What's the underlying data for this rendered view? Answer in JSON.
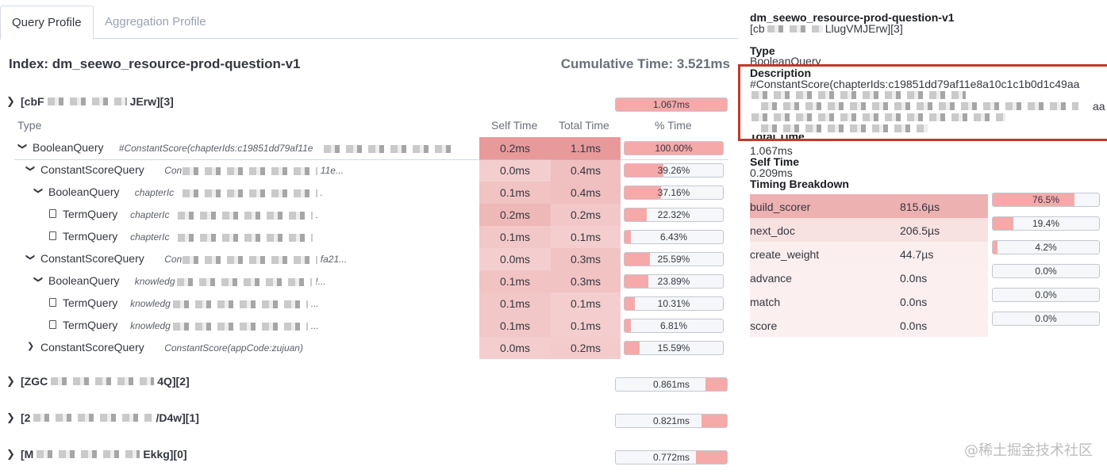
{
  "tabs": {
    "query_profile": "Query Profile",
    "aggregation_profile": "Aggregation Profile"
  },
  "index_title": "Index: dm_seewo_resource-prod-question-v1",
  "cumulative_time": "Cumulative Time: 3.521ms",
  "shards": [
    {
      "prefix": "[cbF",
      "suffix": "JErw][3]",
      "time": "1.067ms",
      "pct": 100
    },
    {
      "prefix": "[ZGC",
      "suffix": "4Q][2]",
      "time": "0.861ms",
      "pct": 80.7
    },
    {
      "prefix": "[2",
      "suffix": "/D4w][1]",
      "time": "0.821ms",
      "pct": 76.9
    },
    {
      "prefix": "[M",
      "suffix": "Ekkg][0]",
      "time": "0.772ms",
      "pct": 72.4
    }
  ],
  "table": {
    "headers": {
      "type": "Type",
      "self_time": "Self Time",
      "total_time": "Total Time",
      "pct_time": "% Time"
    },
    "rows": [
      {
        "indent": 0,
        "chevron": "down",
        "type": "BooleanQuery",
        "desc": "#ConstantScore(chapterIds:c19851dd79af11e",
        "self": "0.2ms",
        "total": "1.1ms",
        "pct_label": "100.00%",
        "pct": 100.0,
        "heat_self": 0.9,
        "heat_total": 0.9
      },
      {
        "indent": 1,
        "chevron": "down",
        "type": "ConstantScoreQuery",
        "desc": "Con",
        "desc_tail": "11e...",
        "self": "0.0ms",
        "total": "0.4ms",
        "pct_label": "39.26%",
        "pct": 39.26,
        "heat_self": 0.2,
        "heat_total": 0.4
      },
      {
        "indent": 2,
        "chevron": "down",
        "type": "BooleanQuery",
        "desc": "chapterIc",
        "desc_tail": ".",
        "self": "0.1ms",
        "total": "0.4ms",
        "pct_label": "37.16%",
        "pct": 37.16,
        "heat_self": 0.35,
        "heat_total": 0.4
      },
      {
        "indent": 3,
        "chevron": "none",
        "type": "TermQuery",
        "desc": "chapterIc",
        "desc_tail": ".",
        "self": "0.2ms",
        "total": "0.2ms",
        "pct_label": "22.32%",
        "pct": 22.32,
        "heat_self": 0.5,
        "heat_total": 0.3
      },
      {
        "indent": 3,
        "chevron": "none",
        "type": "TermQuery",
        "desc": "chapterIc",
        "desc_tail": "",
        "self": "0.1ms",
        "total": "0.1ms",
        "pct_label": "6.43%",
        "pct": 6.43,
        "heat_self": 0.3,
        "heat_total": 0.2
      },
      {
        "indent": 1,
        "chevron": "down",
        "type": "ConstantScoreQuery",
        "desc": "Con",
        "desc_tail": "fa21...",
        "self": "0.0ms",
        "total": "0.3ms",
        "pct_label": "25.59%",
        "pct": 25.59,
        "heat_self": 0.2,
        "heat_total": 0.35
      },
      {
        "indent": 2,
        "chevron": "down",
        "type": "BooleanQuery",
        "desc": "knowledg",
        "desc_tail": "!...",
        "self": "0.1ms",
        "total": "0.3ms",
        "pct_label": "23.89%",
        "pct": 23.89,
        "heat_self": 0.35,
        "heat_total": 0.35
      },
      {
        "indent": 3,
        "chevron": "none",
        "type": "TermQuery",
        "desc": "knowledg",
        "desc_tail": "...",
        "self": "0.1ms",
        "total": "0.1ms",
        "pct_label": "10.31%",
        "pct": 10.31,
        "heat_self": 0.3,
        "heat_total": 0.2
      },
      {
        "indent": 3,
        "chevron": "none",
        "type": "TermQuery",
        "desc": "knowledg",
        "desc_tail": "...",
        "self": "0.1ms",
        "total": "0.1ms",
        "pct_label": "6.81%",
        "pct": 6.81,
        "heat_self": 0.3,
        "heat_total": 0.2
      },
      {
        "indent": 1,
        "chevron": "right",
        "type": "ConstantScoreQuery",
        "desc": "ConstantScore(appCode:zujuan)",
        "desc_tail": "",
        "self": "0.0ms",
        "total": "0.2ms",
        "pct_label": "15.59%",
        "pct": 15.59,
        "heat_self": 0.2,
        "heat_total": 0.25
      }
    ]
  },
  "detail": {
    "index_name": "dm_seewo_resource-prod-question-v1",
    "shard_id_prefix": "[cb",
    "shard_id_suffix": "LlugVMJErw][3]",
    "type_label": "Type",
    "type_value": "BooleanQuery",
    "description_label": "Description",
    "description_value": "#ConstantScore(chapterIds:c19851dd79af11e8a10c1c1b0d1c49aa",
    "description_tail": "aa",
    "total_time_label": "Total Time",
    "total_time_value": "1.067ms",
    "self_time_label": "Self Time",
    "self_time_value": "0.209ms",
    "timing_breakdown_label": "Timing Breakdown",
    "breakdown": [
      {
        "name": "build_scorer",
        "value": "815.6µs",
        "pct_label": "76.5%",
        "pct": 76.5,
        "heat": 0.8
      },
      {
        "name": "next_doc",
        "value": "206.5µs",
        "pct_label": "19.4%",
        "pct": 19.4,
        "heat": 0.2
      },
      {
        "name": "create_weight",
        "value": "44.7µs",
        "pct_label": "4.2%",
        "pct": 4.2,
        "heat": 0.05
      },
      {
        "name": "advance",
        "value": "0.0ns",
        "pct_label": "0.0%",
        "pct": 0.0,
        "heat": 0.03
      },
      {
        "name": "match",
        "value": "0.0ns",
        "pct_label": "0.0%",
        "pct": 0.0,
        "heat": 0.03
      },
      {
        "name": "score",
        "value": "0.0ns",
        "pct_label": "0.0%",
        "pct": 0.0,
        "heat": 0.03
      }
    ]
  },
  "colors": {
    "heat": "#e8a6a6",
    "bar_fill": "#f5a9a9",
    "bar_bg": "#f5f7fa",
    "highlight_border": "#c0392b"
  },
  "watermark": "@稀土掘金技术社区"
}
